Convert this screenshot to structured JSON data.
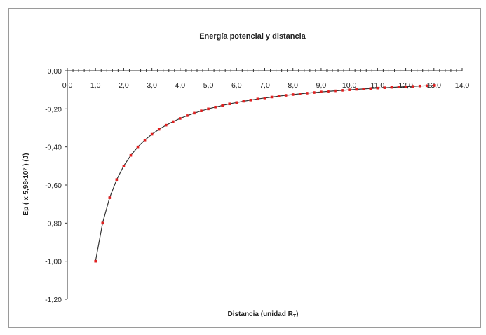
{
  "chart_data": {
    "type": "line",
    "title": "Energía potencial y distancia",
    "xlabel": "Distancia (unidad R",
    "xlabel_sub": "T",
    "xlabel_end": ")",
    "ylabel": "Ep ( x 5,98·10⁷ ) (J)",
    "xlim": [
      0,
      14
    ],
    "ylim": [
      -1.2,
      0
    ],
    "x_ticks": [
      "0,0",
      "1,0",
      "2,0",
      "3,0",
      "4,0",
      "5,0",
      "6,0",
      "7,0",
      "8,0",
      "9,0",
      "10,0",
      "11,0",
      "12,0",
      "13,0",
      "14,0"
    ],
    "y_ticks": [
      "0,00",
      "-0,20",
      "-0,40",
      "-0,60",
      "-0,80",
      "-1,00",
      "-1,20"
    ],
    "grid": false,
    "colors": {
      "line": "#333333",
      "marker": "#e02020",
      "axis": "#333333"
    },
    "series": [
      {
        "x": [
          1.0,
          1.25,
          1.5,
          1.75,
          2.0,
          2.25,
          2.5,
          2.75,
          3.0,
          3.25,
          3.5,
          3.75,
          4.0,
          4.25,
          4.5,
          4.75,
          5.0,
          5.25,
          5.5,
          5.75,
          6.0,
          6.25,
          6.5,
          6.75,
          7.0,
          7.25,
          7.5,
          7.75,
          8.0,
          8.25,
          8.5,
          8.75,
          9.0,
          9.25,
          9.5,
          9.75,
          10.0,
          10.25,
          10.5,
          10.75,
          11.0,
          11.25,
          11.5,
          11.75,
          12.0,
          12.25,
          12.5,
          12.75,
          13.0
        ],
        "y": [
          -1.0,
          -0.8,
          -0.6667,
          -0.5714,
          -0.5,
          -0.4444,
          -0.4,
          -0.3636,
          -0.3333,
          -0.3077,
          -0.2857,
          -0.2667,
          -0.25,
          -0.2353,
          -0.2222,
          -0.2105,
          -0.2,
          -0.1905,
          -0.1818,
          -0.1739,
          -0.1667,
          -0.16,
          -0.1538,
          -0.1481,
          -0.1429,
          -0.1379,
          -0.1333,
          -0.129,
          -0.125,
          -0.1212,
          -0.1176,
          -0.1143,
          -0.1111,
          -0.1081,
          -0.1053,
          -0.1026,
          -0.1,
          -0.0976,
          -0.0952,
          -0.093,
          -0.0909,
          -0.0889,
          -0.087,
          -0.0851,
          -0.0833,
          -0.0816,
          -0.08,
          -0.0784,
          -0.0769
        ]
      }
    ]
  }
}
